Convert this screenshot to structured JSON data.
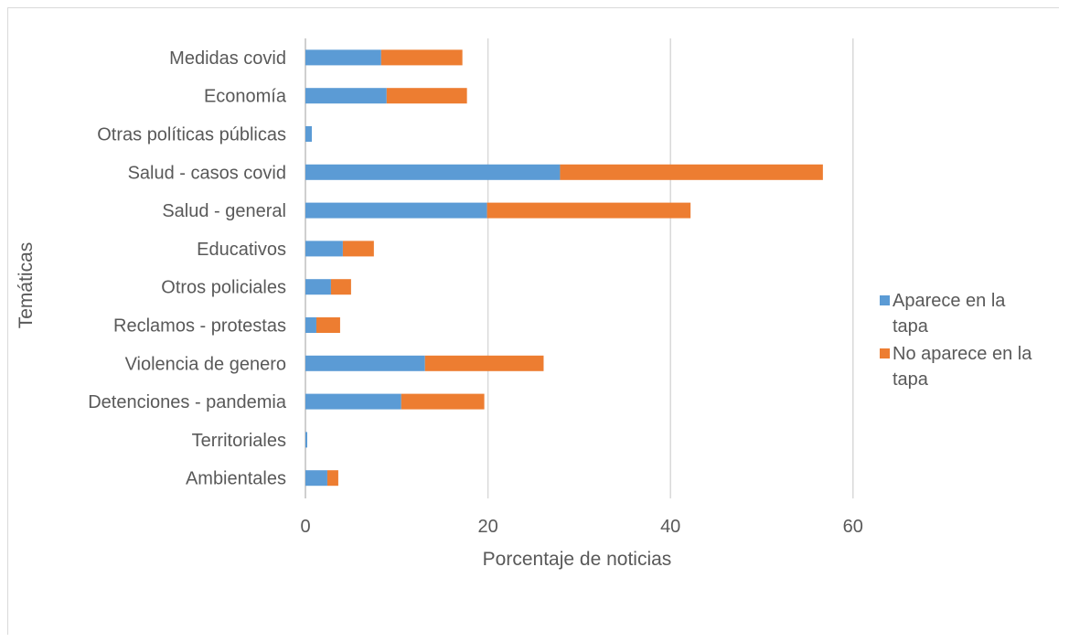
{
  "chart_data": {
    "type": "bar",
    "orientation": "horizontal",
    "stacked": true,
    "title": "",
    "xlabel": "Porcentaje de noticias",
    "ylabel": "Temáticas",
    "xlim": [
      0,
      80
    ],
    "xticks": [
      0,
      20,
      40,
      60
    ],
    "grid": true,
    "legend_position": "right",
    "categories": [
      "Medidas covid",
      "Economía",
      "Otras políticas públicas",
      "Salud - casos covid",
      "Salud - general",
      "Educativos",
      "Otros policiales",
      "Reclamos - protestas",
      "Violencia de genero",
      "Detenciones - pandemia",
      "Territoriales",
      "Ambientales"
    ],
    "series": [
      {
        "name": "Aparece en la tapa",
        "color": "#5b9bd5",
        "values": [
          8.3,
          8.9,
          0.7,
          27.9,
          19.9,
          4.1,
          2.8,
          1.2,
          13.1,
          10.5,
          0.2,
          2.4
        ]
      },
      {
        "name": "No aparece en la tapa",
        "color": "#ed7d31",
        "values": [
          8.9,
          8.8,
          0.0,
          28.8,
          22.3,
          3.4,
          2.2,
          2.6,
          13.0,
          9.1,
          0.0,
          1.2
        ]
      }
    ]
  }
}
